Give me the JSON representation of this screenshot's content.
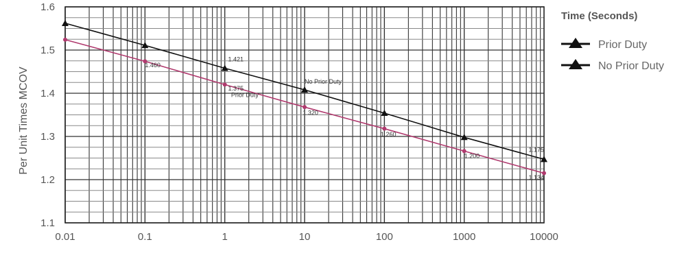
{
  "chart_data": {
    "type": "line",
    "ylabel": "Per Unit Times MCOV",
    "x_scale": "log",
    "xlim": [
      0.01,
      10000
    ],
    "ylim": [
      1.1,
      1.6
    ],
    "x_tick_labels": [
      "0.01",
      "0.1",
      "1",
      "10",
      "100",
      "1000",
      "10000"
    ],
    "x_ticks": [
      0.01,
      0.1,
      1,
      10,
      100,
      1000,
      10000
    ],
    "y_tick_labels": [
      "1.6",
      "1.5",
      "1.4",
      "1.3",
      "1.2",
      "1.1"
    ],
    "y_ticks": [
      1.6,
      1.5,
      1.4,
      1.3,
      1.2,
      1.1
    ],
    "grid": true,
    "legend": {
      "title": "Time (Seconds)",
      "placement": "right",
      "entries": [
        "Prior Duty",
        "No Prior Duty"
      ]
    },
    "series": [
      {
        "key": "no_prior",
        "color": "#111111",
        "x": [
          0.01,
          0.1,
          1,
          10,
          100,
          1000,
          10000
        ],
        "values": [
          1.562,
          1.511,
          1.458,
          1.408,
          1.354,
          1.298,
          1.247
        ]
      },
      {
        "key": "prior",
        "color": "#b03a6e",
        "x": [
          0.01,
          0.1,
          1,
          10,
          100,
          1000,
          10000
        ],
        "values": [
          1.524,
          1.474,
          1.42,
          1.368,
          1.318,
          1.266,
          1.215
        ]
      }
    ],
    "annotations": [
      {
        "text": "1.460",
        "x": 0.1,
        "y": 1.46
      },
      {
        "text": "1.421",
        "x": 1.1,
        "y": 1.474
      },
      {
        "text": "1.375",
        "x": 1.1,
        "y": 1.406
      },
      {
        "text": "Prior Duty",
        "x": 1.2,
        "y": 1.391
      },
      {
        "text": "No Prior Duty",
        "x": 10,
        "y": 1.422
      },
      {
        "text": "1.320",
        "x": 9.5,
        "y": 1.35
      },
      {
        "text": "1.260",
        "x": 90,
        "y": 1.3
      },
      {
        "text": "1.200",
        "x": 1000,
        "y": 1.25
      },
      {
        "text": "1.175",
        "x": 10000,
        "y": 1.264
      },
      {
        "text": "1.134",
        "x": 10000,
        "y": 1.2
      }
    ]
  }
}
